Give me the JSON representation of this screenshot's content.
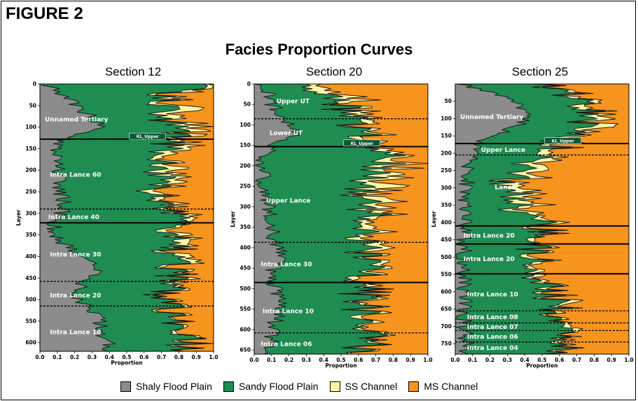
{
  "figure_label": "FIGURE 2",
  "title": "Facies Proportion Curves",
  "colors": {
    "shaly": "#8c8c8c",
    "sandy": "#1f8c52",
    "ss": "#fbf4a4",
    "ms": "#f7941d"
  },
  "legend": [
    {
      "label": "Shaly Flood Plain",
      "color": "#8c8c8c"
    },
    {
      "label": "Sandy Flood Plain",
      "color": "#1f8c52"
    },
    {
      "label": "SS Channel",
      "color": "#fbf4a4"
    },
    {
      "label": "MS Channel",
      "color": "#f7941d"
    }
  ],
  "chart_data": [
    {
      "type": "area",
      "title": "Section 12",
      "xlabel": "Proportion",
      "ylabel": "Layer",
      "xlim": [
        0.0,
        1.0
      ],
      "ylim": [
        0,
        620
      ],
      "x_ticks": [
        "0.0",
        "0.1",
        "0.2",
        "0.3",
        "0.4",
        "0.5",
        "0.6",
        "0.7",
        "0.8",
        "0.9",
        "1.0"
      ],
      "y_ticks": [
        0,
        50,
        100,
        150,
        200,
        250,
        300,
        350,
        400,
        450,
        500,
        550,
        600
      ],
      "layer_top": 0,
      "layer_bottom": 620,
      "series": [
        "Shaly Flood Plain",
        "Sandy Flood Plain",
        "SS Channel",
        "MS Channel"
      ],
      "profile": {
        "layers": [
          0,
          20,
          60,
          100,
          130,
          160,
          200,
          250,
          290,
          320,
          360,
          400,
          430,
          460,
          500,
          520,
          560,
          600,
          620
        ],
        "shaly": [
          0.05,
          0.1,
          0.25,
          0.35,
          0.12,
          0.08,
          0.1,
          0.12,
          0.15,
          0.08,
          0.1,
          0.22,
          0.35,
          0.25,
          0.2,
          0.3,
          0.35,
          0.38,
          0.4
        ],
        "sandy": [
          0.9,
          0.6,
          0.45,
          0.45,
          0.65,
          0.62,
          0.58,
          0.55,
          0.6,
          0.72,
          0.65,
          0.52,
          0.42,
          0.5,
          0.52,
          0.45,
          0.48,
          0.45,
          0.45
        ],
        "ss": [
          0.02,
          0.08,
          0.08,
          0.1,
          0.06,
          0.1,
          0.08,
          0.06,
          0.05,
          0.04,
          0.06,
          0.06,
          0.05,
          0.04,
          0.04,
          0.03,
          0.02,
          0.03,
          0.02
        ]
      },
      "boundaries": [
        {
          "layer": 128,
          "style": "solid"
        },
        {
          "layer": 290,
          "style": "dashed"
        },
        {
          "layer": 322,
          "style": "solid"
        },
        {
          "layer": 458,
          "style": "dashed"
        },
        {
          "layer": 515,
          "style": "dashed"
        }
      ],
      "marker": {
        "text": "KL_Upper",
        "layer": 122,
        "x": 0.62
      },
      "units": [
        {
          "label": "Unnamed Tertiary",
          "layer": 82,
          "x": 0.02
        },
        {
          "label": "Intra Lance 60",
          "layer": 210,
          "x": 0.05
        },
        {
          "label": "Intra Lance 40",
          "layer": 308,
          "x": 0.04
        },
        {
          "label": "Intra Lance 30",
          "layer": 395,
          "x": 0.05
        },
        {
          "label": "Intra Lance 20",
          "layer": 490,
          "x": 0.05
        },
        {
          "label": "Intra Lance 10",
          "layer": 575,
          "x": 0.05
        }
      ]
    },
    {
      "type": "area",
      "title": "Section 20",
      "xlabel": "Proportion",
      "ylabel": "Layer",
      "xlim": [
        0.0,
        1.0
      ],
      "ylim": [
        0,
        660
      ],
      "x_ticks": [
        "0.0",
        "0.1",
        "0.2",
        "0.3",
        "0.4",
        "0.5",
        "0.6",
        "0.7",
        "0.8",
        "0.9",
        "1.0"
      ],
      "y_ticks": [
        0,
        50,
        100,
        150,
        200,
        250,
        300,
        350,
        400,
        450,
        500,
        550,
        600,
        650
      ],
      "layer_top": 0,
      "layer_bottom": 660,
      "series": [
        "Shaly Flood Plain",
        "Sandy Flood Plain",
        "SS Channel",
        "MS Channel"
      ],
      "profile": {
        "layers": [
          0,
          30,
          60,
          90,
          120,
          150,
          180,
          220,
          260,
          300,
          340,
          380,
          420,
          460,
          500,
          540,
          580,
          620,
          660
        ],
        "shaly": [
          0.05,
          0.08,
          0.12,
          0.18,
          0.25,
          0.1,
          0.05,
          0.05,
          0.06,
          0.08,
          0.1,
          0.12,
          0.15,
          0.1,
          0.12,
          0.15,
          0.12,
          0.1,
          0.1
        ],
        "sandy": [
          0.2,
          0.35,
          0.4,
          0.4,
          0.35,
          0.55,
          0.75,
          0.65,
          0.55,
          0.55,
          0.6,
          0.5,
          0.5,
          0.55,
          0.5,
          0.45,
          0.5,
          0.55,
          0.55
        ],
        "ss": [
          0.05,
          0.12,
          0.08,
          0.05,
          0.05,
          0.05,
          0.08,
          0.12,
          0.14,
          0.1,
          0.06,
          0.08,
          0.05,
          0.06,
          0.05,
          0.04,
          0.04,
          0.03,
          0.03
        ]
      },
      "boundaries": [
        {
          "layer": 85,
          "style": "dashed"
        },
        {
          "layer": 153,
          "style": "solid"
        },
        {
          "layer": 387,
          "style": "dashed"
        },
        {
          "layer": 485,
          "style": "solid"
        },
        {
          "layer": 608,
          "style": "dashed"
        }
      ],
      "marker": {
        "text": "KL_Upper",
        "layer": 145,
        "x": 0.62
      },
      "units": [
        {
          "label": "Upper UT",
          "layer": 42,
          "x": 0.12
        },
        {
          "label": "Lower UT",
          "layer": 120,
          "x": 0.08
        },
        {
          "label": "Upper Lance",
          "layer": 285,
          "x": 0.06
        },
        {
          "label": "Intra Lance 30",
          "layer": 440,
          "x": 0.03
        },
        {
          "label": "Intra Lance 10",
          "layer": 555,
          "x": 0.04
        },
        {
          "label": "Intra Lance 06",
          "layer": 635,
          "x": 0.03
        }
      ]
    },
    {
      "type": "area",
      "title": "Section 25",
      "xlabel": "Proportion",
      "ylabel": "Layer",
      "xlim": [
        0.0,
        1.0
      ],
      "ylim": [
        0,
        780
      ],
      "x_ticks": [
        "0.0",
        "0.1",
        "0.2",
        "0.3",
        "0.4",
        "0.5",
        "0.6",
        "0.7",
        "0.8",
        "0.9",
        "1.0"
      ],
      "y_ticks": [
        50,
        100,
        150,
        200,
        250,
        300,
        350,
        400,
        450,
        500,
        550,
        600,
        650,
        700,
        750
      ],
      "layer_top": 0,
      "layer_bottom": 780,
      "series": [
        "Shaly Flood Plain",
        "Sandy Flood Plain",
        "SS Channel",
        "MS Channel"
      ],
      "profile": {
        "layers": [
          0,
          40,
          80,
          120,
          170,
          200,
          250,
          300,
          350,
          410,
          460,
          500,
          550,
          600,
          650,
          700,
          740,
          780
        ],
        "shaly": [
          0.05,
          0.3,
          0.4,
          0.38,
          0.12,
          0.1,
          0.08,
          0.06,
          0.06,
          0.05,
          0.05,
          0.05,
          0.05,
          0.06,
          0.05,
          0.05,
          0.06,
          0.06
        ],
        "sandy": [
          0.5,
          0.4,
          0.35,
          0.38,
          0.45,
          0.4,
          0.3,
          0.25,
          0.28,
          0.45,
          0.42,
          0.4,
          0.45,
          0.48,
          0.5,
          0.55,
          0.52,
          0.5
        ],
        "ss": [
          0.05,
          0.05,
          0.06,
          0.08,
          0.05,
          0.1,
          0.12,
          0.1,
          0.08,
          0.04,
          0.03,
          0.04,
          0.04,
          0.05,
          0.04,
          0.03,
          0.04,
          0.03
        ]
      },
      "boundaries": [
        {
          "layer": 172,
          "style": "solid"
        },
        {
          "layer": 205,
          "style": "dashed"
        },
        {
          "layer": 410,
          "style": "solid"
        },
        {
          "layer": 462,
          "style": "solid"
        },
        {
          "layer": 548,
          "style": "solid"
        },
        {
          "layer": 655,
          "style": "dashed"
        },
        {
          "layer": 690,
          "style": "dashed"
        },
        {
          "layer": 712,
          "style": "dashed"
        },
        {
          "layer": 745,
          "style": "dashed"
        }
      ],
      "marker": {
        "text": "KL_Upper",
        "layer": 165,
        "x": 0.62
      },
      "units": [
        {
          "label": "Unnamed Tertiary",
          "layer": 95,
          "x": 0.02
        },
        {
          "label": "Upper Lance",
          "layer": 190,
          "x": 0.14
        },
        {
          "label": "Lance",
          "layer": 298,
          "x": 0.22
        },
        {
          "label": "Intra Lance 20",
          "layer": 437,
          "x": 0.04
        },
        {
          "label": "Intra Lance 20",
          "layer": 505,
          "x": 0.04
        },
        {
          "label": "Intra Lance 10",
          "layer": 607,
          "x": 0.06
        },
        {
          "label": "Intra Lance 08",
          "layer": 673,
          "x": 0.06
        },
        {
          "label": "Intra Lance 07",
          "layer": 701,
          "x": 0.06
        },
        {
          "label": "Intra Lance 06",
          "layer": 729,
          "x": 0.06
        },
        {
          "label": "Intra Lance 04",
          "layer": 762,
          "x": 0.06
        }
      ]
    }
  ]
}
